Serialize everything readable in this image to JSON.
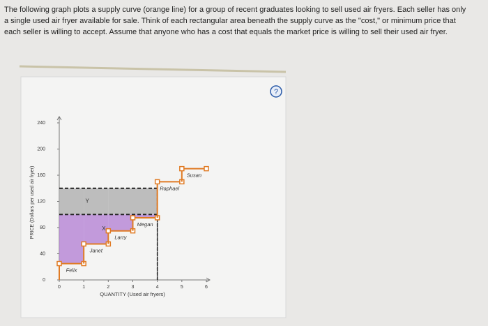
{
  "question": "The following graph plots a supply curve (orange line) for a group of recent graduates looking to sell used air fryers. Each seller has only a single used air fryer available for sale. Think of each rectangular area beneath the supply curve as the \"cost,\" or minimum price that each seller is willing to accept. Assume that anyone who has a cost that equals the market price is willing to sell their used air fryer.",
  "help": "?",
  "chart_data": {
    "type": "step",
    "xlabel": "QUANTITY (Used air fryers)",
    "ylabel": "PRICE (Dollars per used air fryer)",
    "sellers": [
      "Felix",
      "Janet",
      "Larry",
      "Megan",
      "Raphael",
      "Susan"
    ],
    "values": [
      25,
      55,
      75,
      95,
      150,
      170
    ],
    "color": "#e07b24",
    "market_prices": [
      100,
      140
    ],
    "areas": [
      {
        "label": "X",
        "color": "#b98ad6"
      },
      {
        "label": "Y",
        "color": "#b3b3b3"
      }
    ],
    "xlim": [
      0,
      6
    ],
    "xticks": [
      0,
      1,
      2,
      3,
      4,
      5,
      6
    ],
    "ylim": [
      0,
      240
    ],
    "yticks": [
      0,
      40,
      80,
      120,
      160,
      200,
      240
    ]
  }
}
